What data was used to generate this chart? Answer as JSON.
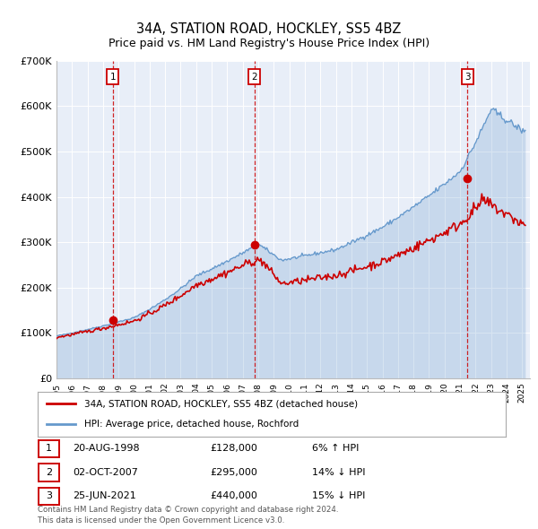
{
  "title": "34A, STATION ROAD, HOCKLEY, SS5 4BZ",
  "subtitle": "Price paid vs. HM Land Registry's House Price Index (HPI)",
  "legend_line1": "34A, STATION ROAD, HOCKLEY, SS5 4BZ (detached house)",
  "legend_line2": "HPI: Average price, detached house, Rochford",
  "footnote1": "Contains HM Land Registry data © Crown copyright and database right 2024.",
  "footnote2": "This data is licensed under the Open Government Licence v3.0.",
  "red_color": "#cc0000",
  "blue_color": "#6699cc",
  "background_color": "#e8eef8",
  "sale_points": [
    {
      "label": "1",
      "date_x": 1998.63,
      "price": 128000,
      "note": "20-AUG-1998",
      "amount": "£128,000",
      "pct": "6% ↑ HPI"
    },
    {
      "label": "2",
      "date_x": 2007.75,
      "price": 295000,
      "note": "02-OCT-2007",
      "amount": "£295,000",
      "pct": "14% ↓ HPI"
    },
    {
      "label": "3",
      "date_x": 2021.48,
      "price": 440000,
      "note": "25-JUN-2021",
      "amount": "£440,000",
      "pct": "15% ↓ HPI"
    }
  ],
  "xmin": 1995.0,
  "xmax": 2025.5,
  "ymin": 0,
  "ymax": 700000,
  "yticks": [
    0,
    100000,
    200000,
    300000,
    400000,
    500000,
    600000,
    700000
  ],
  "ytick_labels": [
    "£0",
    "£100K",
    "£200K",
    "£300K",
    "£400K",
    "£500K",
    "£600K",
    "£700K"
  ]
}
